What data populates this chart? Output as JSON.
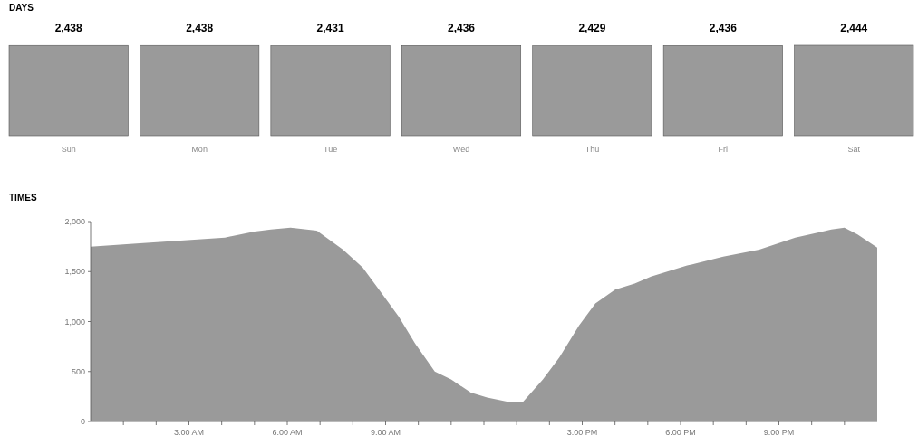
{
  "chart_data": [
    {
      "type": "bar",
      "title": "DAYS",
      "categories": [
        "Sun",
        "Mon",
        "Tue",
        "Wed",
        "Thu",
        "Fri",
        "Sat"
      ],
      "values": [
        2438,
        2438,
        2431,
        2436,
        2429,
        2436,
        2444
      ],
      "color": "#9a9a9a",
      "value_labels": [
        "2,438",
        "2,438",
        "2,431",
        "2,436",
        "2,429",
        "2,436",
        "2,444"
      ],
      "tick_labels": "x"
    },
    {
      "type": "area",
      "title": "TIMES",
      "color": "#9a9a9a",
      "x": [
        0,
        1.4,
        2.75,
        4.1,
        5,
        5.5,
        6.1,
        6.9,
        7.7,
        8.3,
        8.8,
        9.4,
        9.9,
        10.5,
        11,
        11.6,
        12.1,
        12.7,
        13.2,
        13.8,
        14.3,
        14.9,
        15.4,
        16,
        16.6,
        17.1,
        18.2,
        19.3,
        20.4,
        21.5,
        22.6,
        23,
        23.4,
        24
      ],
      "values": [
        1750,
        1780,
        1810,
        1840,
        1900,
        1920,
        1940,
        1910,
        1720,
        1540,
        1320,
        1050,
        780,
        500,
        420,
        290,
        240,
        200,
        200,
        420,
        640,
        960,
        1180,
        1320,
        1380,
        1450,
        1560,
        1650,
        1720,
        1840,
        1920,
        1940,
        1870,
        1740
      ],
      "xlim": [
        0,
        24
      ],
      "xticks": [
        {
          "value": 1,
          "label": null
        },
        {
          "value": 2,
          "label": null
        },
        {
          "value": 3,
          "label": "3:00 AM"
        },
        {
          "value": 4,
          "label": null
        },
        {
          "value": 5,
          "label": null
        },
        {
          "value": 6,
          "label": "6:00 AM"
        },
        {
          "value": 7,
          "label": null
        },
        {
          "value": 8,
          "label": null
        },
        {
          "value": 9,
          "label": "9:00 AM"
        },
        {
          "value": 10,
          "label": null
        },
        {
          "value": 11,
          "label": null
        },
        {
          "value": 12,
          "label": null
        },
        {
          "value": 13,
          "label": null
        },
        {
          "value": 14,
          "label": null
        },
        {
          "value": 15,
          "label": "3:00 PM"
        },
        {
          "value": 16,
          "label": null
        },
        {
          "value": 17,
          "label": null
        },
        {
          "value": 18,
          "label": "6:00 PM"
        },
        {
          "value": 19,
          "label": null
        },
        {
          "value": 20,
          "label": null
        },
        {
          "value": 21,
          "label": "9:00 PM"
        },
        {
          "value": 22,
          "label": null
        },
        {
          "value": 23,
          "label": null
        }
      ],
      "ylim": [
        0,
        2000
      ],
      "yticks": [
        {
          "value": 0,
          "label": "0"
        },
        {
          "value": 500,
          "label": "500"
        },
        {
          "value": 1000,
          "label": "1,000"
        },
        {
          "value": 1500,
          "label": "1,500"
        },
        {
          "value": 2000,
          "label": "2,000"
        }
      ]
    }
  ]
}
